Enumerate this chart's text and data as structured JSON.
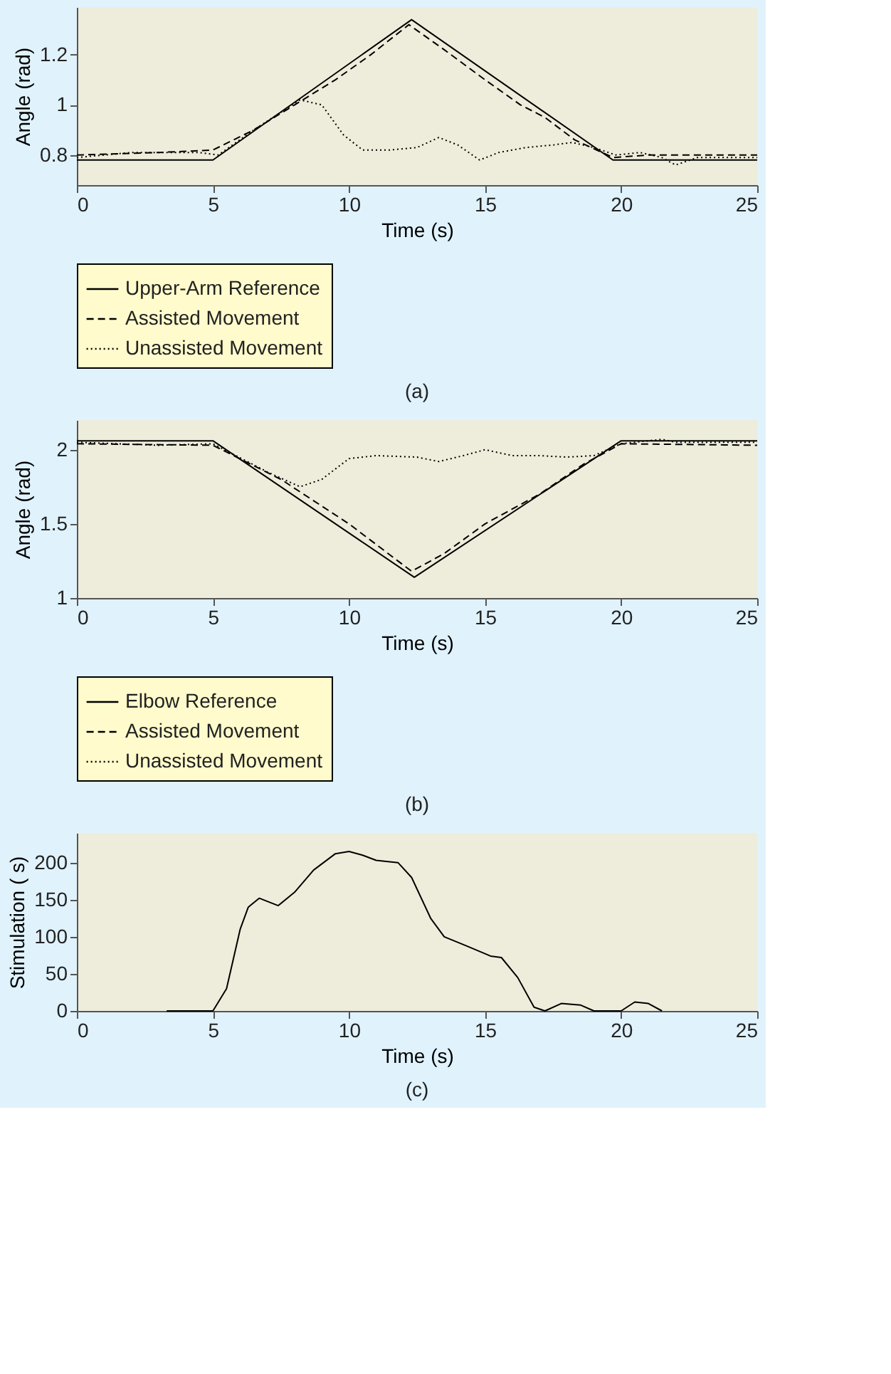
{
  "chart_data": [
    {
      "type": "line",
      "xlabel": "Time (s)",
      "ylabel": "Angle (rad)",
      "xlim": [
        0,
        25
      ],
      "xticks": [
        0,
        5,
        10,
        15,
        20,
        25
      ],
      "ylim": [
        0.68,
        1.39
      ],
      "yticks": [
        0.8,
        1,
        1.2
      ],
      "legend": "bottom",
      "annotations": [
        "(a)"
      ],
      "series": [
        {
          "name": "Upper-Arm Reference",
          "color": "#000000",
          "line_style": "solid",
          "x": [
            0,
            5,
            12.3,
            19.7,
            25
          ],
          "values": [
            0.78,
            0.78,
            1.34,
            0.78,
            0.78
          ]
        },
        {
          "name": "Assisted Movement",
          "color": "#000000",
          "line_style": "dashed",
          "x": [
            0,
            3,
            5,
            6.5,
            8,
            9.5,
            10.8,
            12.2,
            13.5,
            15,
            16.3,
            17.2,
            18.3,
            19.7,
            21,
            25
          ],
          "values": [
            0.8,
            0.81,
            0.82,
            0.9,
            1.0,
            1.1,
            1.2,
            1.32,
            1.22,
            1.1,
            1.0,
            0.95,
            0.86,
            0.79,
            0.8,
            0.8
          ]
        },
        {
          "name": "Unassisted Movement",
          "color": "#000000",
          "line_style": "dotted",
          "x": [
            0,
            2,
            4.5,
            5.2,
            6.5,
            8.2,
            9,
            9.8,
            10.5,
            11.5,
            12.5,
            13.3,
            14,
            14.8,
            15.5,
            16.5,
            17.5,
            18.2,
            19,
            19.8,
            20.7,
            21.5,
            22,
            22.8,
            25
          ],
          "values": [
            0.79,
            0.81,
            0.81,
            0.8,
            0.9,
            1.02,
            1.0,
            0.88,
            0.82,
            0.82,
            0.83,
            0.87,
            0.84,
            0.78,
            0.81,
            0.83,
            0.84,
            0.85,
            0.83,
            0.8,
            0.81,
            0.79,
            0.76,
            0.79,
            0.79
          ]
        }
      ]
    },
    {
      "type": "line",
      "xlabel": "Time (s)",
      "ylabel": "Angle (rad)",
      "xlim": [
        0,
        25
      ],
      "xticks": [
        0,
        5,
        10,
        15,
        20,
        25
      ],
      "ylim": [
        1,
        2.2
      ],
      "yticks": [
        1,
        1.5,
        2
      ],
      "legend": "bottom",
      "annotations": [
        "(b)"
      ],
      "series": [
        {
          "name": "Elbow Reference",
          "color": "#000000",
          "line_style": "solid",
          "x": [
            0,
            5,
            12.4,
            20,
            25
          ],
          "values": [
            2.06,
            2.06,
            1.14,
            2.06,
            2.06
          ]
        },
        {
          "name": "Assisted Movement",
          "color": "#000000",
          "line_style": "dashed",
          "x": [
            0,
            5,
            7.5,
            10,
            12.3,
            13.5,
            15,
            17,
            18.6,
            20,
            25
          ],
          "values": [
            2.04,
            2.03,
            1.8,
            1.5,
            1.18,
            1.3,
            1.5,
            1.7,
            1.9,
            2.04,
            2.03
          ]
        },
        {
          "name": "Unassisted Movement",
          "color": "#000000",
          "line_style": "dotted",
          "x": [
            0,
            3,
            5,
            7,
            8.2,
            9,
            10,
            11,
            12.5,
            13.3,
            14.2,
            15,
            16,
            17,
            18,
            19,
            20,
            21.5,
            22,
            25
          ],
          "values": [
            2.05,
            2.03,
            2.04,
            1.85,
            1.75,
            1.8,
            1.94,
            1.96,
            1.95,
            1.92,
            1.96,
            2.0,
            1.96,
            1.96,
            1.95,
            1.96,
            2.04,
            2.07,
            2.05,
            2.05
          ]
        }
      ]
    },
    {
      "type": "line",
      "xlabel": "Time (s)",
      "ylabel": "Stimulation (  s)",
      "xlim": [
        0,
        25
      ],
      "xticks": [
        0,
        5,
        10,
        15,
        20,
        25
      ],
      "ylim": [
        0,
        240
      ],
      "yticks": [
        0,
        50,
        100,
        150,
        200
      ],
      "annotations": [
        "(c)"
      ],
      "series": [
        {
          "color": "#000000",
          "line_style": "solid",
          "x": [
            3.3,
            5,
            5.5,
            6,
            6.3,
            6.7,
            7.4,
            8,
            8.7,
            9.5,
            10,
            10.5,
            11,
            11.8,
            12.3,
            13,
            13.5,
            14.3,
            15.2,
            15.6,
            16.2,
            16.8,
            17.2,
            17.8,
            18.5,
            19,
            20,
            20.5,
            21,
            21.5
          ],
          "values": [
            0,
            0,
            30,
            110,
            140,
            152,
            142,
            160,
            190,
            212,
            215,
            210,
            203,
            200,
            180,
            125,
            100,
            88,
            74,
            72,
            45,
            5,
            0,
            10,
            8,
            0,
            0,
            12,
            10,
            0
          ]
        }
      ]
    }
  ]
}
